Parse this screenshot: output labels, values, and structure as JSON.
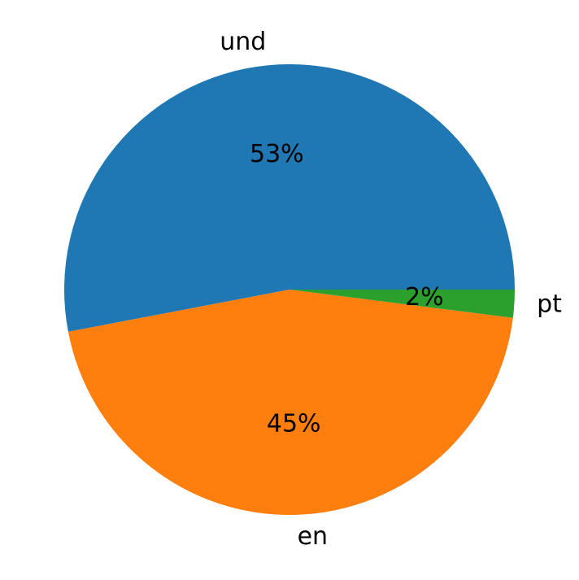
{
  "chart_data": {
    "type": "pie",
    "categories": [
      "und",
      "en",
      "pt"
    ],
    "values": [
      53,
      45,
      2
    ],
    "value_labels": [
      "53%",
      "45%",
      "2%"
    ],
    "colors": [
      "#1f77b4",
      "#ff7f0e",
      "#2ca02c"
    ]
  }
}
